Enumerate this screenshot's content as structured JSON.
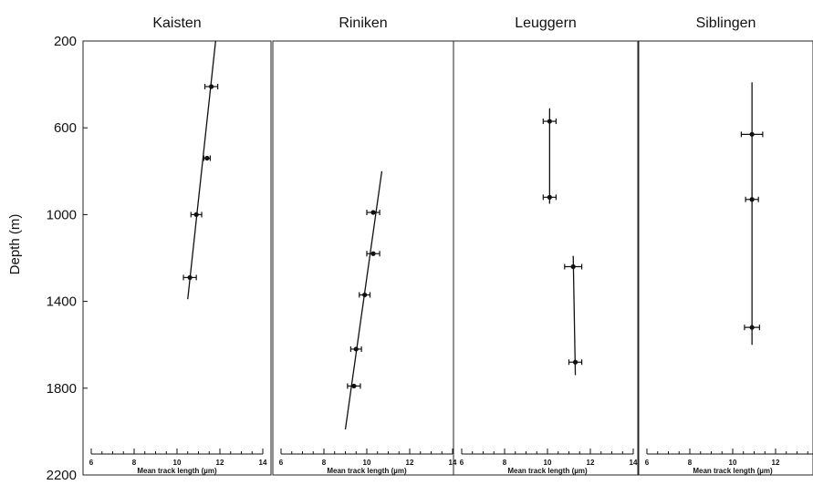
{
  "chart_data": {
    "type": "scatter",
    "ylabel": "Depth (m)",
    "ylim": [
      2200,
      200
    ],
    "yticks": [
      "200",
      "600",
      "1000",
      "1400",
      "1800",
      "2200"
    ],
    "xlim": [
      6,
      14
    ],
    "xticks": [
      "6",
      "8",
      "10",
      "12",
      "14"
    ],
    "panels": [
      {
        "title": "Kaisten",
        "xlabel": "Mean track length (µm)",
        "points": [
          {
            "x": 11.6,
            "y": 410,
            "xerr": 0.3
          },
          {
            "x": 11.4,
            "y": 740,
            "xerr": 0.15
          },
          {
            "x": 10.9,
            "y": 1000,
            "xerr": 0.25
          },
          {
            "x": 10.6,
            "y": 1290,
            "xerr": 0.3
          }
        ],
        "fit": [
          {
            "x": 11.8,
            "y": 200
          },
          {
            "x": 10.5,
            "y": 1390
          }
        ]
      },
      {
        "title": "Riniken",
        "xlabel": "Mean track length (µm)",
        "points": [
          {
            "x": 10.3,
            "y": 990,
            "xerr": 0.3
          },
          {
            "x": 10.3,
            "y": 1180,
            "xerr": 0.3
          },
          {
            "x": 9.9,
            "y": 1370,
            "xerr": 0.25
          },
          {
            "x": 9.5,
            "y": 1620,
            "xerr": 0.25
          },
          {
            "x": 9.4,
            "y": 1790,
            "xerr": 0.3
          }
        ],
        "fit": [
          {
            "x": 10.7,
            "y": 800
          },
          {
            "x": 9.0,
            "y": 1990
          }
        ]
      },
      {
        "title": "Leuggern",
        "xlabel": "Mean track length (µm)",
        "points": [
          {
            "x": 10.1,
            "y": 570,
            "xerr": 0.3
          },
          {
            "x": 10.1,
            "y": 920,
            "xerr": 0.3
          },
          {
            "x": 11.2,
            "y": 1240,
            "xerr": 0.4
          },
          {
            "x": 11.3,
            "y": 1680,
            "xerr": 0.3
          }
        ],
        "fit_segments": [
          [
            {
              "x": 10.1,
              "y": 510
            },
            {
              "x": 10.1,
              "y": 950
            }
          ],
          [
            {
              "x": 11.2,
              "y": 1190
            },
            {
              "x": 11.3,
              "y": 1740
            }
          ]
        ]
      },
      {
        "title": "Siblingen",
        "xlabel": "Mean track length (µm)",
        "points": [
          {
            "x": 10.9,
            "y": 630,
            "xerr": 0.5
          },
          {
            "x": 10.9,
            "y": 930,
            "xerr": 0.3
          },
          {
            "x": 10.9,
            "y": 1520,
            "xerr": 0.35
          }
        ],
        "fit": [
          {
            "x": 10.9,
            "y": 390
          },
          {
            "x": 10.9,
            "y": 1600
          }
        ]
      }
    ]
  }
}
